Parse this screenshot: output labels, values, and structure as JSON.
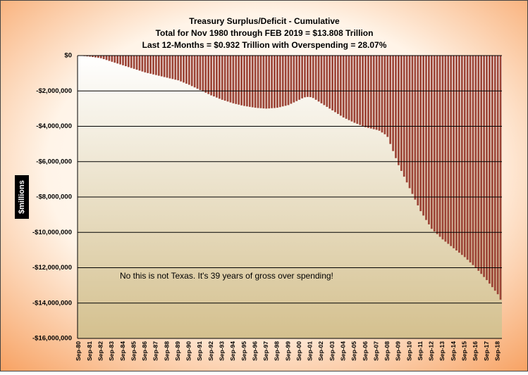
{
  "chart_data": {
    "type": "bar",
    "title": "Treasury Surplus/Deficit - Cumulative",
    "subtitle": [
      "Total  for Nov 1980 through FEB 2019 = $13.808 Trillion",
      "Last 12-Months = $0.932 Trillion with Overspending = 28.07%"
    ],
    "y_label": "$millions",
    "annotation": "No this is not Texas. It's 39 years of gross over spending!",
    "color": "#9c4436",
    "grid": true,
    "ylim": [
      -16000000,
      0
    ],
    "yticks": [
      {
        "value": 0,
        "label": "$0"
      },
      {
        "value": -2000000,
        "label": "-$2,000,000"
      },
      {
        "value": -4000000,
        "label": "-$4,000,000"
      },
      {
        "value": -6000000,
        "label": "-$6,000,000"
      },
      {
        "value": -8000000,
        "label": "-$8,000,000"
      },
      {
        "value": -10000000,
        "label": "-$10,000,000"
      },
      {
        "value": -12000000,
        "label": "-$12,000,000"
      },
      {
        "value": -14000000,
        "label": "-$14,000,000"
      },
      {
        "value": -16000000,
        "label": "-$16,000,000"
      }
    ],
    "categories": [
      "Sep-80",
      null,
      null,
      null,
      "Sep-81",
      null,
      null,
      null,
      "Sep-82",
      null,
      null,
      null,
      "Sep-83",
      null,
      null,
      null,
      "Sep-84",
      null,
      null,
      null,
      "Sep-85",
      null,
      null,
      null,
      "Sep-86",
      null,
      null,
      null,
      "Sep-87",
      null,
      null,
      null,
      "Sep-88",
      null,
      null,
      null,
      "Sep-89",
      null,
      null,
      null,
      "Sep-90",
      null,
      null,
      null,
      "Sep-91",
      null,
      null,
      null,
      "Sep-92",
      null,
      null,
      null,
      "Sep-93",
      null,
      null,
      null,
      "Sep-94",
      null,
      null,
      null,
      "Sep-95",
      null,
      null,
      null,
      "Sep-96",
      null,
      null,
      null,
      "Sep-97",
      null,
      null,
      null,
      "Sep-98",
      null,
      null,
      null,
      "Sep-99",
      null,
      null,
      null,
      "Sep-00",
      null,
      null,
      null,
      "Sep-01",
      null,
      null,
      null,
      "Sep-02",
      null,
      null,
      null,
      "Sep-03",
      null,
      null,
      null,
      "Sep-04",
      null,
      null,
      null,
      "Sep-05",
      null,
      null,
      null,
      "Sep-06",
      null,
      null,
      null,
      "Sep-07",
      null,
      null,
      null,
      "Sep-08",
      null,
      null,
      null,
      "Sep-09",
      null,
      null,
      null,
      "Sep-10",
      null,
      null,
      null,
      "Sep-11",
      null,
      null,
      null,
      "Sep-12",
      null,
      null,
      null,
      "Sep-13",
      null,
      null,
      null,
      "Sep-14",
      null,
      null,
      null,
      "Sep-15",
      null,
      null,
      null,
      "Sep-16",
      null,
      null,
      null,
      "Sep-17",
      null,
      null,
      null,
      "Sep-18",
      null
    ],
    "values": [
      0,
      -15000,
      -30000,
      -45000,
      -60000,
      -83000,
      -105000,
      -128000,
      -150000,
      -200000,
      -250000,
      -300000,
      -350000,
      -400000,
      -450000,
      -500000,
      -550000,
      -600000,
      -650000,
      -700000,
      -750000,
      -800000,
      -850000,
      -900000,
      -950000,
      -990000,
      -1025000,
      -1065000,
      -1100000,
      -1140000,
      -1175000,
      -1215000,
      -1250000,
      -1290000,
      -1325000,
      -1365000,
      -1400000,
      -1460000,
      -1525000,
      -1590000,
      -1650000,
      -1725000,
      -1800000,
      -1875000,
      -1950000,
      -2025000,
      -2100000,
      -2175000,
      -2250000,
      -2310000,
      -2375000,
      -2440000,
      -2500000,
      -2550000,
      -2600000,
      -2650000,
      -2700000,
      -2740000,
      -2775000,
      -2815000,
      -2850000,
      -2875000,
      -2900000,
      -2925000,
      -2950000,
      -2965000,
      -2975000,
      -2990000,
      -3000000,
      -2990000,
      -2975000,
      -2965000,
      -2950000,
      -2915000,
      -2875000,
      -2840000,
      -2800000,
      -2725000,
      -2650000,
      -2575000,
      -2500000,
      -2420000,
      -2360000,
      -2340000,
      -2350000,
      -2400000,
      -2500000,
      -2600000,
      -2700000,
      -2800000,
      -2900000,
      -3000000,
      -3100000,
      -3200000,
      -3300000,
      -3400000,
      -3500000,
      -3575000,
      -3650000,
      -3725000,
      -3800000,
      -3860000,
      -3925000,
      -3990000,
      -4050000,
      -4090000,
      -4125000,
      -4165000,
      -4200000,
      -4250000,
      -4350000,
      -4450000,
      -4600000,
      -5000000,
      -5400000,
      -5800000,
      -6200000,
      -6525000,
      -6850000,
      -7175000,
      -7500000,
      -7825000,
      -8150000,
      -8475000,
      -8800000,
      -9050000,
      -9300000,
      -9550000,
      -9800000,
      -9950000,
      -10100000,
      -10250000,
      -10400000,
      -10525000,
      -10650000,
      -10775000,
      -10900000,
      -11025000,
      -11150000,
      -11275000,
      -11400000,
      -11550000,
      -11700000,
      -11850000,
      -12000000,
      -12175000,
      -12350000,
      -12525000,
      -12700000,
      -12900000,
      -13100000,
      -13300000,
      -13500000,
      -13808000
    ]
  }
}
